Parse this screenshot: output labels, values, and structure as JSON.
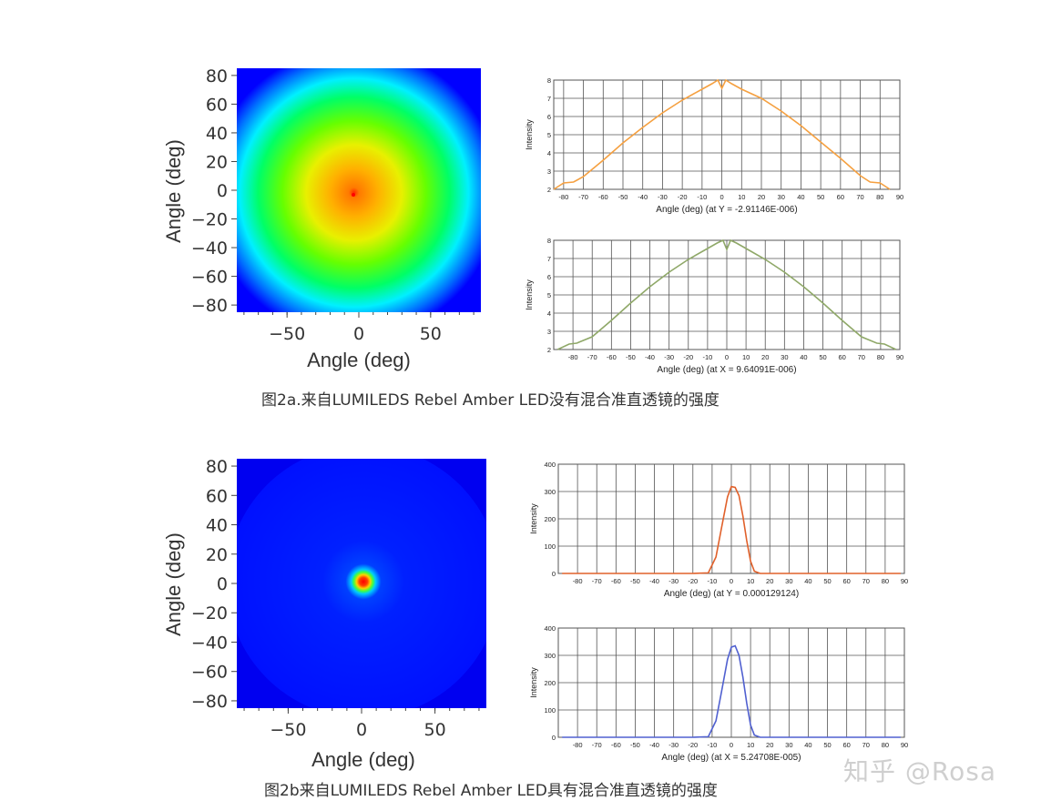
{
  "figures": [
    {
      "caption": "图2a.来自LUMILEDS Rebel Amber LED没有混合准直透镜的强度",
      "heatmap": {
        "xlabel": "Angle (deg)",
        "ylabel": "Angle (deg)",
        "xticks": [
          "−50",
          "0",
          "50"
        ],
        "yticks": [
          "80",
          "60",
          "40",
          "20",
          "0",
          "−20",
          "−40",
          "−60",
          "−80"
        ]
      },
      "profiles": [
        {
          "xlabel": "Angle (deg) (at Y = -2.91146E-006)",
          "ylabel": "Intensity",
          "xticks": [
            "-80",
            "-70",
            "-60",
            "-50",
            "-40",
            "-30",
            "-20",
            "-10",
            "0",
            "10",
            "20",
            "30",
            "40",
            "50",
            "60",
            "70",
            "80",
            "90"
          ],
          "yticks": [
            "2",
            "3",
            "4",
            "5",
            "6",
            "7",
            "8"
          ]
        },
        {
          "xlabel": "Angle (deg) (at X = 9.64091E-006)",
          "ylabel": "Intensity",
          "xticks": [
            "-80",
            "-70",
            "-60",
            "-50",
            "-40",
            "-30",
            "-20",
            "-10",
            "0",
            "10",
            "20",
            "30",
            "40",
            "50",
            "60",
            "70",
            "80",
            "90"
          ],
          "yticks": [
            "2",
            "3",
            "4",
            "5",
            "6",
            "7",
            "8"
          ]
        }
      ]
    },
    {
      "caption": "图2b来自LUMILEDS Rebel Amber LED具有混合准直透镜的强度",
      "heatmap": {
        "xlabel": "Angle (deg)",
        "ylabel": "Angle (deg)",
        "xticks": [
          "−50",
          "0",
          "50"
        ],
        "yticks": [
          "80",
          "60",
          "40",
          "20",
          "0",
          "−20",
          "−40",
          "−60",
          "−80"
        ]
      },
      "profiles": [
        {
          "xlabel": "Angle (deg) (at Y = 0.000129124)",
          "ylabel": "Intensity",
          "xticks": [
            "-80",
            "-70",
            "-60",
            "-50",
            "-40",
            "-30",
            "-20",
            "-10",
            "0",
            "10",
            "20",
            "30",
            "40",
            "50",
            "60",
            "70",
            "80",
            "90"
          ],
          "yticks": [
            "0",
            "100",
            "200",
            "300",
            "400"
          ]
        },
        {
          "xlabel": "Angle (deg) (at X = 5.24708E-005)",
          "ylabel": "Intensity",
          "xticks": [
            "-80",
            "-70",
            "-60",
            "-50",
            "-40",
            "-30",
            "-20",
            "-10",
            "0",
            "10",
            "20",
            "30",
            "40",
            "50",
            "60",
            "70",
            "80",
            "90"
          ],
          "yticks": [
            "0",
            "100",
            "200",
            "300",
            "400"
          ]
        }
      ]
    }
  ],
  "watermark": "知乎 @Rosa",
  "chart_data": [
    {
      "type": "heatmap",
      "xlabel": "Angle (deg)",
      "ylabel": "Angle (deg)",
      "xlim": [
        -85,
        85
      ],
      "ylim": [
        -85,
        85
      ],
      "description_values": {
        "center": [
          -3,
          -3
        ],
        "peak_color": "#ff3b00",
        "edge_color": "#0000ff"
      },
      "colors": [
        "#0000ff",
        "#00ffff",
        "#00ff00",
        "#ffff00",
        "#ff0000"
      ]
    },
    {
      "type": "line",
      "xlabel": "Angle (deg) (at Y = -2.91146E-006)",
      "ylabel": "Intensity",
      "xlim": [
        -85,
        90
      ],
      "ylim": [
        2,
        8
      ],
      "grid": true,
      "series": [
        {
          "color": "#f5a040",
          "x": [
            -85,
            -80,
            -75,
            -70,
            -60,
            -50,
            -40,
            -30,
            -20,
            -10,
            -5,
            -2,
            0,
            2,
            5,
            10,
            20,
            30,
            40,
            50,
            60,
            70,
            75,
            80,
            85
          ],
          "y": [
            2.0,
            2.35,
            2.4,
            2.7,
            3.6,
            4.55,
            5.4,
            6.2,
            6.9,
            7.5,
            7.8,
            8.0,
            7.55,
            8.0,
            7.8,
            7.5,
            7.0,
            6.3,
            5.5,
            4.6,
            3.7,
            2.75,
            2.4,
            2.35,
            2.0
          ]
        }
      ]
    },
    {
      "type": "line",
      "xlabel": "Angle (deg) (at X = 9.64091E-006)",
      "ylabel": "Intensity",
      "xlim": [
        -90,
        90
      ],
      "ylim": [
        2,
        8
      ],
      "grid": true,
      "series": [
        {
          "color": "#8fa868",
          "x": [
            -88,
            -82,
            -78,
            -70,
            -60,
            -50,
            -40,
            -30,
            -20,
            -10,
            -5,
            -2,
            0,
            2,
            5,
            10,
            20,
            30,
            40,
            50,
            60,
            70,
            78,
            82,
            88
          ],
          "y": [
            2.0,
            2.3,
            2.35,
            2.7,
            3.6,
            4.55,
            5.45,
            6.25,
            6.95,
            7.55,
            7.85,
            8.0,
            7.5,
            8.0,
            7.85,
            7.55,
            6.95,
            6.25,
            5.45,
            4.55,
            3.6,
            2.7,
            2.35,
            2.3,
            2.0
          ]
        }
      ]
    },
    {
      "type": "heatmap",
      "xlabel": "Angle (deg)",
      "ylabel": "Angle (deg)",
      "xlim": [
        -85,
        85
      ],
      "ylim": [
        -85,
        85
      ],
      "description_values": {
        "center": [
          0,
          2
        ],
        "peak_color": "#ff0000",
        "edge_color": "#0000ff"
      },
      "colors": [
        "#0000ff",
        "#00ffff",
        "#00ff00",
        "#ffff00",
        "#ff0000"
      ]
    },
    {
      "type": "line",
      "xlabel": "Angle (deg) (at Y = 0.000129124)",
      "ylabel": "Intensity",
      "xlim": [
        -90,
        90
      ],
      "ylim": [
        0,
        400
      ],
      "grid": true,
      "series": [
        {
          "color": "#e0602a",
          "x": [
            -88,
            -20,
            -12,
            -8,
            -5,
            -2,
            0,
            2,
            4,
            6,
            8,
            10,
            12,
            15,
            20,
            88
          ],
          "y": [
            0,
            0,
            2,
            60,
            170,
            280,
            318,
            315,
            285,
            210,
            120,
            45,
            8,
            0,
            0,
            0
          ]
        }
      ]
    },
    {
      "type": "line",
      "xlabel": "Angle (deg) (at X = 5.24708E-005)",
      "ylabel": "Intensity",
      "xlim": [
        -90,
        90
      ],
      "ylim": [
        0,
        400
      ],
      "grid": true,
      "series": [
        {
          "color": "#5060d0",
          "x": [
            -88,
            -20,
            -12,
            -8,
            -5,
            -2,
            0,
            2,
            4,
            6,
            8,
            10,
            12,
            15,
            20,
            88
          ],
          "y": [
            0,
            0,
            2,
            60,
            170,
            285,
            330,
            335,
            300,
            220,
            125,
            45,
            8,
            0,
            0,
            0
          ]
        }
      ]
    }
  ]
}
